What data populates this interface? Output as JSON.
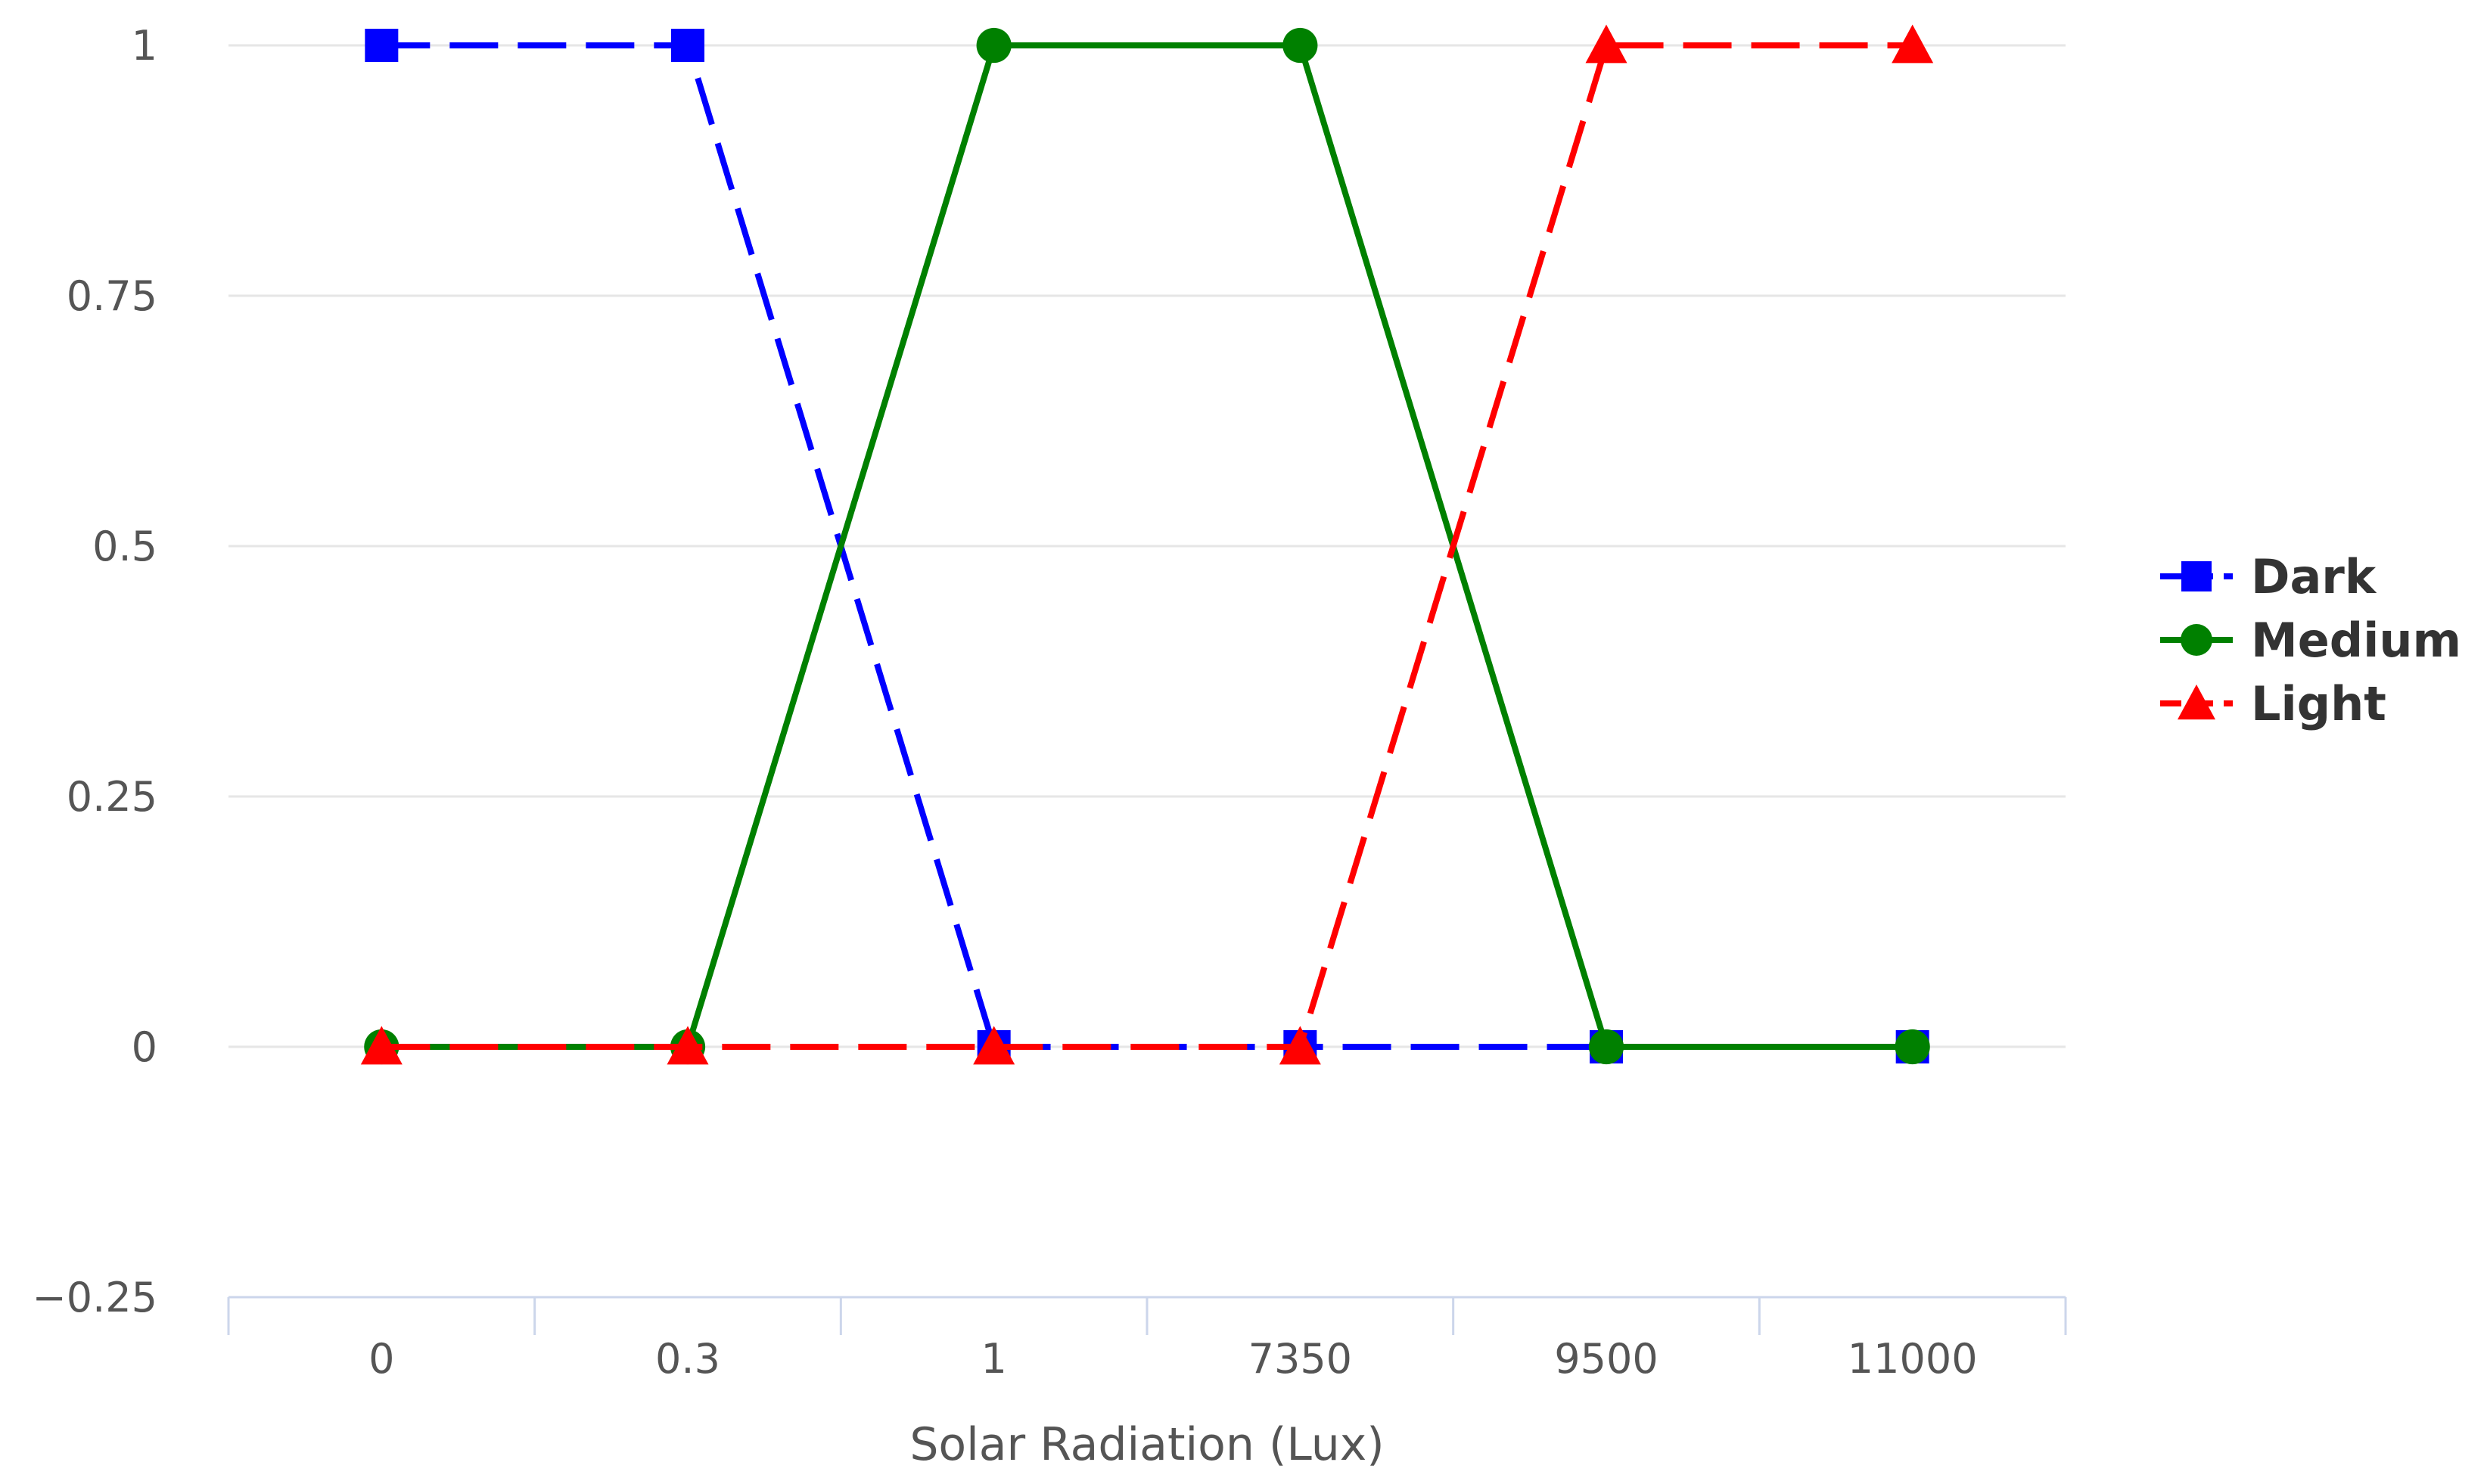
{
  "chart_data": {
    "type": "line",
    "title": "",
    "xlabel": "Solar Radiation (Lux)",
    "ylabel": "",
    "categories": [
      "0",
      "0.3",
      "1",
      "7350",
      "9500",
      "11000"
    ],
    "y_ticks": [
      "1",
      "0.75",
      "0.5",
      "0.25",
      "0",
      "−0.25"
    ],
    "ylim": [
      -0.25,
      1
    ],
    "grid": true,
    "legend": "right",
    "series": [
      {
        "name": "Dark",
        "values": [
          1,
          1,
          0,
          0,
          0,
          0
        ],
        "color": "#0000ff",
        "marker": "square",
        "dashed": true
      },
      {
        "name": "Medium",
        "values": [
          0,
          0,
          1,
          1,
          0,
          0
        ],
        "color": "#008000",
        "marker": "circle",
        "dashed": false
      },
      {
        "name": "Light",
        "values": [
          0,
          0,
          0,
          0,
          1,
          1
        ],
        "color": "#ff0000",
        "marker": "triangle",
        "dashed": true
      }
    ]
  }
}
